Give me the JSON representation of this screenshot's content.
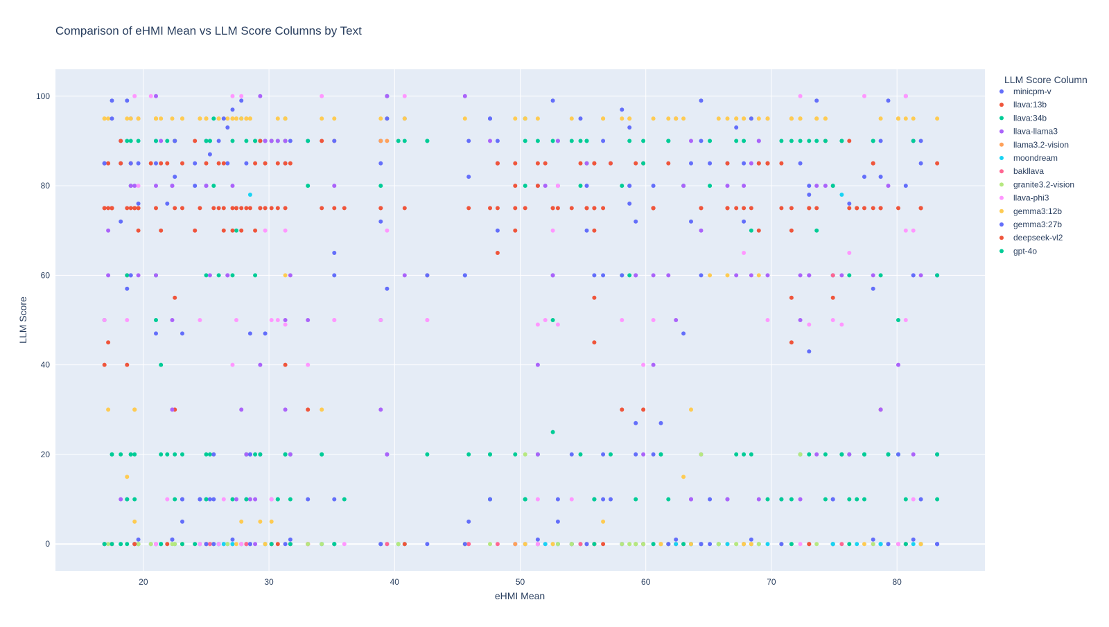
{
  "chart_data": {
    "type": "scatter",
    "title": "Comparison of eHMI Mean vs LLM Score Columns by Text",
    "xlabel": "eHMI Mean",
    "ylabel": "LLM Score",
    "xlim": [
      13,
      87
    ],
    "ylim": [
      -6,
      106
    ],
    "xticks": [
      20,
      30,
      40,
      50,
      60,
      70,
      80
    ],
    "yticks": [
      0,
      20,
      40,
      60,
      80,
      100
    ],
    "grid": true,
    "legend_title": "LLM Score Column",
    "legend_position": "right",
    "x_samples": [
      16.9,
      17.2,
      17.5,
      18.2,
      18.7,
      19.0,
      19.3,
      19.6,
      20.6,
      21.0,
      21.4,
      21.9,
      22.3,
      22.5,
      23.1,
      24.1,
      24.5,
      25.0,
      25.3,
      25.6,
      26.0,
      26.4,
      26.7,
      27.1,
      27.4,
      27.8,
      28.2,
      28.5,
      28.9,
      29.3,
      29.7,
      30.2,
      30.7,
      31.3,
      31.7,
      33.1,
      34.2,
      35.2,
      36.0,
      38.9,
      39.4,
      40.3,
      40.8,
      42.6,
      45.6,
      45.9,
      47.6,
      48.2,
      49.6,
      50.4,
      51.4,
      52.0,
      52.6,
      53.0,
      54.1,
      54.8,
      55.3,
      55.9,
      56.6,
      57.2,
      58.1,
      58.7,
      59.2,
      59.8,
      60.6,
      61.2,
      61.8,
      62.4,
      63.0,
      63.6,
      64.4,
      65.1,
      65.8,
      66.5,
      67.2,
      67.8,
      68.4,
      69.0,
      69.7,
      70.8,
      71.6,
      72.3,
      73.0,
      73.6,
      74.3,
      74.9,
      75.6,
      76.2,
      76.8,
      77.4,
      78.1,
      78.7,
      79.3,
      80.1,
      80.7,
      81.3,
      81.9,
      83.2
    ],
    "series": [
      {
        "name": "minicpm-v",
        "color": "#636efa",
        "seed": 11,
        "levels": [
          0,
          1,
          5,
          10,
          20,
          27,
          43,
          47,
          57,
          60,
          65,
          70,
          72,
          76,
          78,
          80,
          82,
          85,
          87,
          90,
          93,
          95,
          97,
          99
        ],
        "weights": [
          18,
          4,
          1,
          6,
          2,
          1,
          1,
          1,
          1,
          3,
          1,
          1,
          1,
          1,
          1,
          2,
          1,
          3,
          1,
          4,
          1,
          2,
          1,
          2
        ],
        "count": 150
      },
      {
        "name": "llava:13b",
        "color": "#ef553b",
        "seed": 22,
        "levels": [
          0,
          30,
          40,
          45,
          50,
          55,
          60,
          65,
          70,
          75,
          80,
          85,
          90
        ],
        "weights": [
          4,
          1,
          1,
          1,
          1,
          1,
          1,
          1,
          2,
          30,
          1,
          14,
          3
        ],
        "count": 130
      },
      {
        "name": "llava:34b",
        "color": "#00cc96",
        "seed": 33,
        "levels": [
          0,
          10,
          20,
          25,
          30,
          40,
          50,
          60,
          70,
          80,
          85,
          90,
          95,
          100
        ],
        "weights": [
          8,
          4,
          14,
          1,
          1,
          1,
          2,
          4,
          2,
          2,
          2,
          16,
          2,
          2
        ],
        "count": 150
      },
      {
        "name": "llava-llama3",
        "color": "#ab63fa",
        "seed": 44,
        "levels": [
          0,
          10,
          20,
          30,
          40,
          50,
          60,
          70,
          80,
          85,
          90,
          100
        ],
        "weights": [
          6,
          3,
          4,
          2,
          2,
          2,
          12,
          1,
          8,
          2,
          4,
          3
        ],
        "count": 110
      },
      {
        "name": "llama3.2-vision",
        "color": "#ffa15a",
        "seed": 55,
        "levels": [
          0,
          90,
          95
        ],
        "weights": [
          6,
          1,
          1
        ],
        "count": 14
      },
      {
        "name": "moondream",
        "color": "#19d3f3",
        "seed": 66,
        "levels": [
          0,
          78
        ],
        "weights": [
          20,
          1
        ],
        "count": 45
      },
      {
        "name": "bakllava",
        "color": "#ff6692",
        "seed": 77,
        "levels": [
          0,
          60
        ],
        "weights": [
          20,
          1
        ],
        "count": 32
      },
      {
        "name": "granite3.2-vision",
        "color": "#b6e880",
        "seed": 88,
        "levels": [
          0,
          20
        ],
        "weights": [
          20,
          1
        ],
        "count": 70
      },
      {
        "name": "llava-phi3",
        "color": "#ff97ff",
        "seed": 99,
        "levels": [
          0,
          10,
          20,
          40,
          49,
          50,
          60,
          65,
          70,
          80,
          85,
          95,
          100
        ],
        "weights": [
          10,
          1,
          1,
          1,
          2,
          6,
          1,
          1,
          2,
          2,
          1,
          1,
          4
        ],
        "count": 70
      },
      {
        "name": "gemma3:12b",
        "color": "#fecb52",
        "seed": 111,
        "levels": [
          0,
          5,
          15,
          30,
          60,
          95
        ],
        "weights": [
          2,
          1,
          1,
          1,
          1,
          30
        ],
        "count": 110
      },
      {
        "name": "gemma3:27b",
        "color": "#636efa",
        "seed": 122,
        "levels": [
          0,
          10,
          20,
          60,
          80,
          85,
          90,
          95
        ],
        "weights": [
          8,
          4,
          3,
          3,
          2,
          2,
          3,
          2
        ],
        "count": 60
      },
      {
        "name": "deepseek-vl2",
        "color": "#ef553b",
        "seed": 133,
        "levels": [
          0,
          70,
          75,
          85,
          90
        ],
        "weights": [
          3,
          2,
          10,
          6,
          2
        ],
        "count": 50
      },
      {
        "name": "gpt-4o",
        "color": "#00cc96",
        "seed": 144,
        "levels": [
          0,
          10,
          20,
          60,
          80,
          90
        ],
        "weights": [
          4,
          2,
          4,
          2,
          2,
          8
        ],
        "count": 50
      }
    ]
  }
}
